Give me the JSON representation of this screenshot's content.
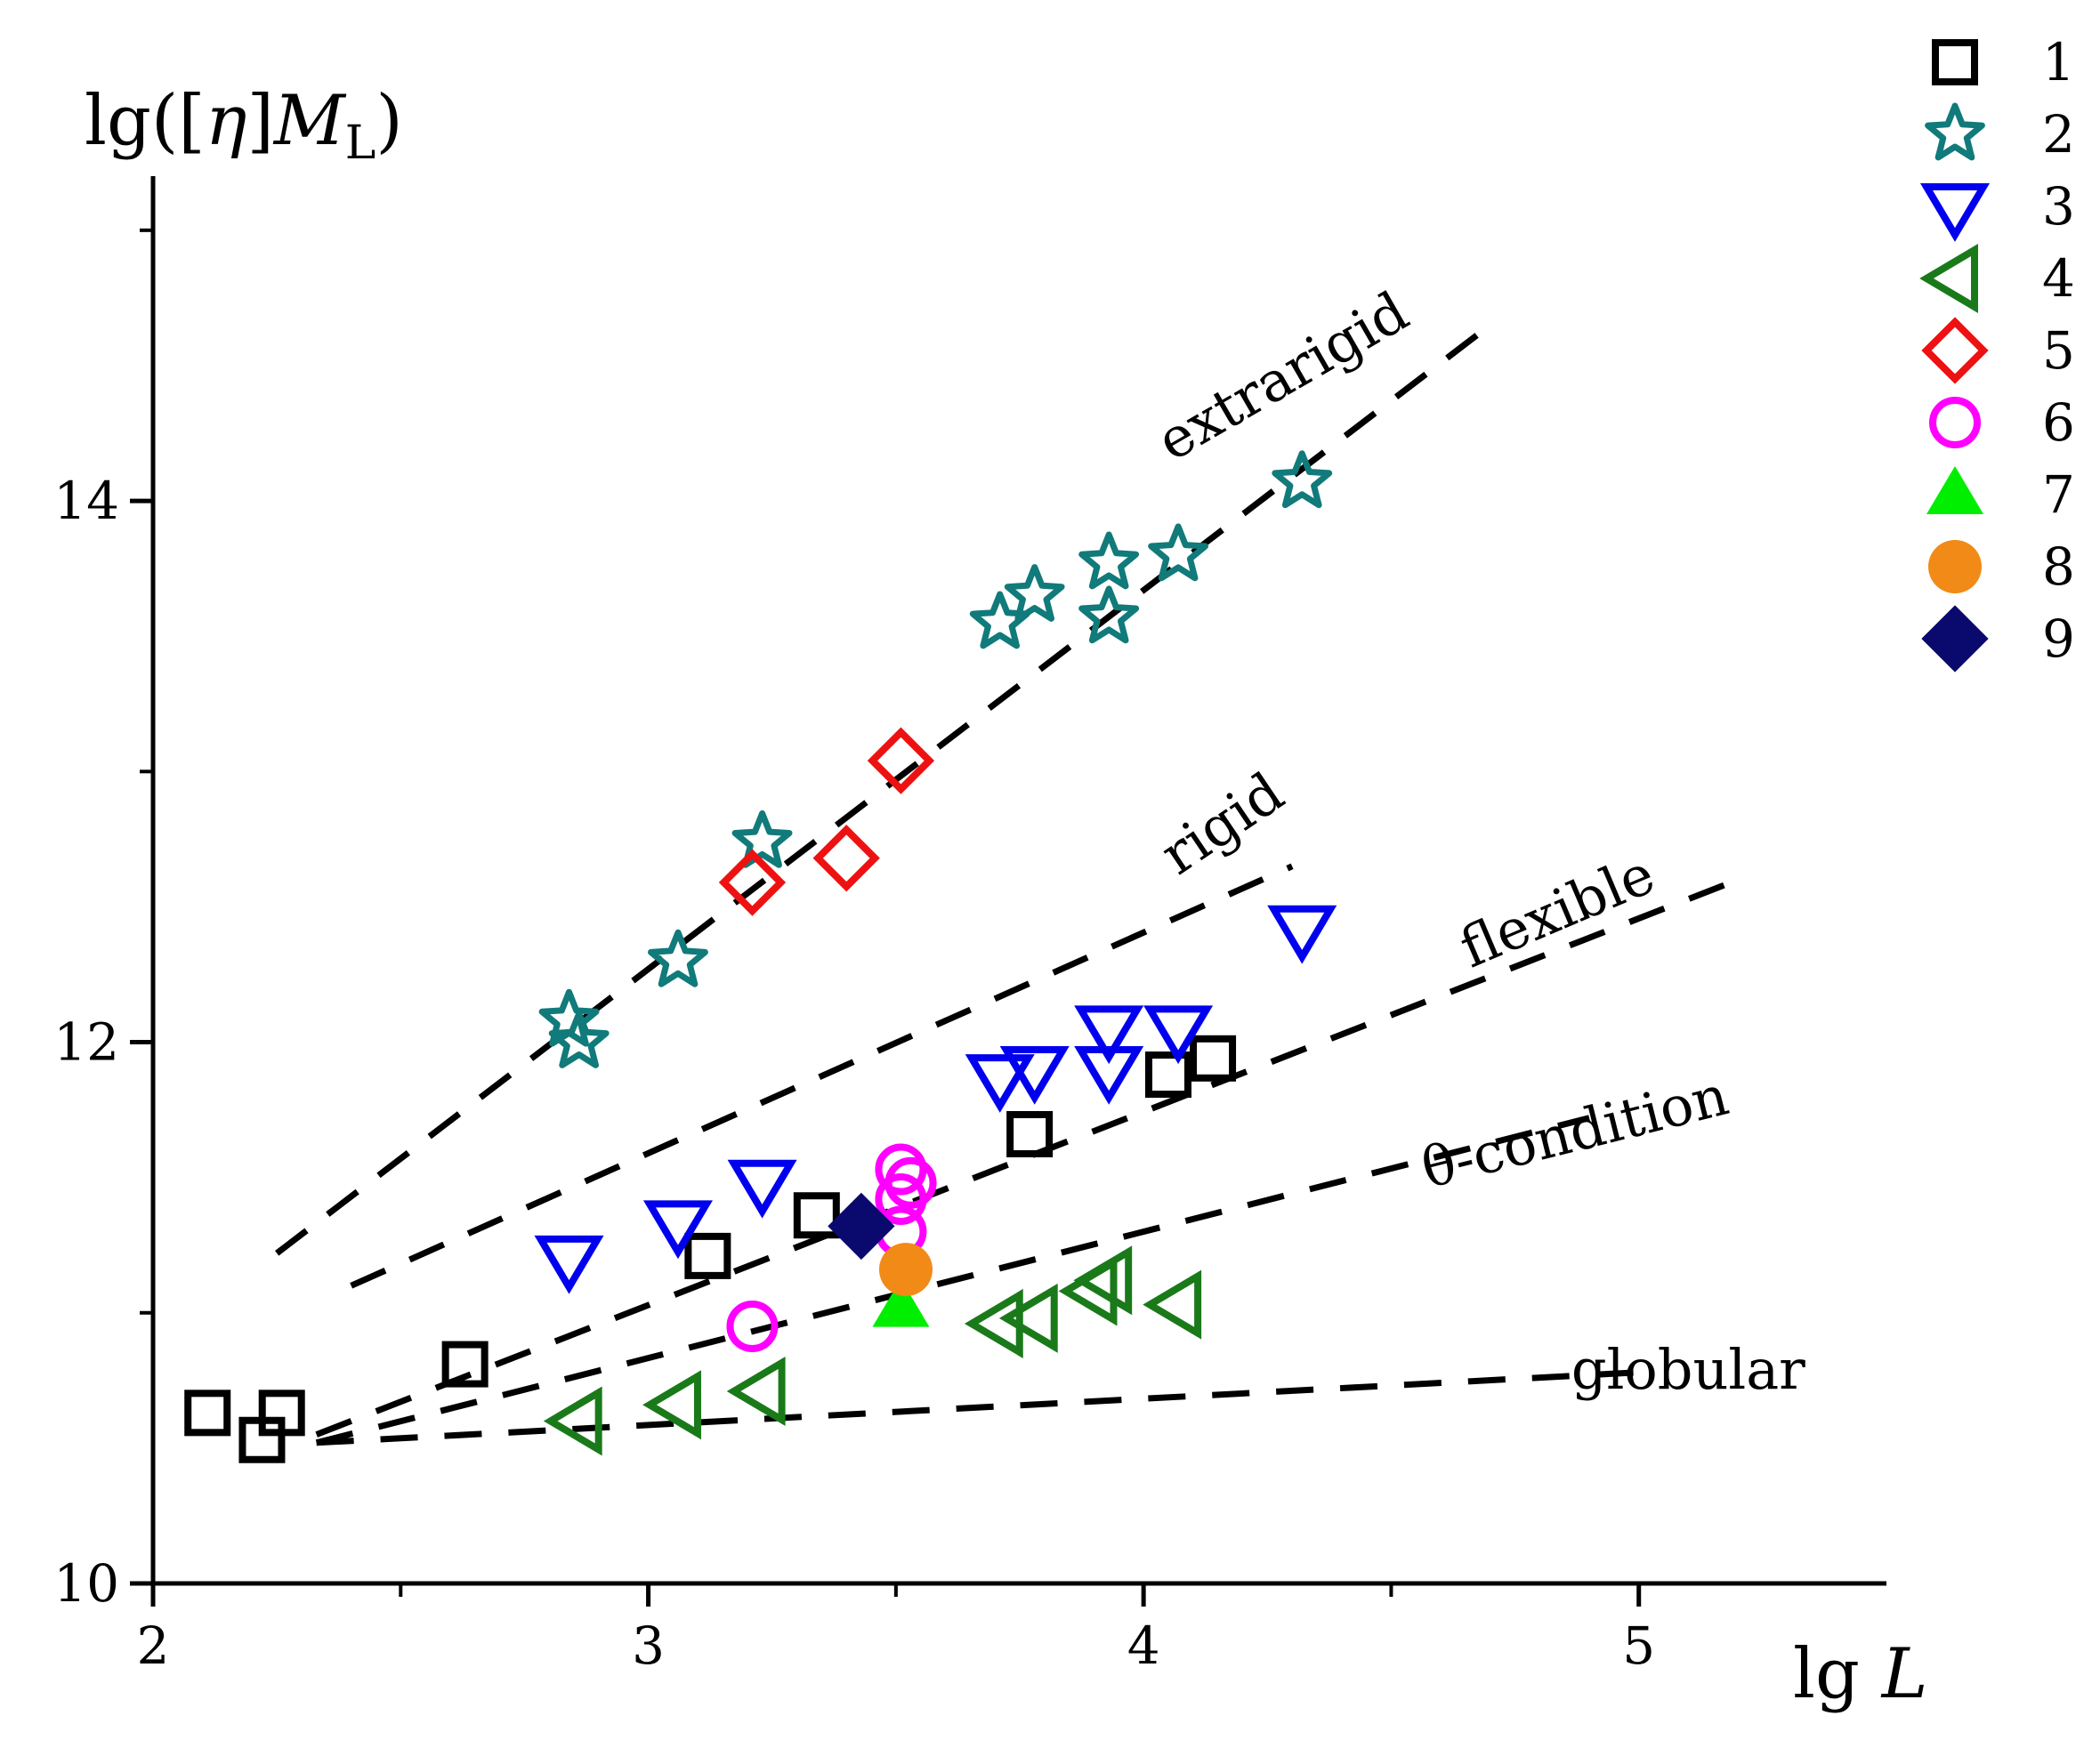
{
  "chart_data": {
    "type": "scatter",
    "title": "",
    "ylabel": "lg([η]M_L)",
    "ylabel_parts": {
      "prefix": "lg([",
      "eta": "η",
      "mid": "]",
      "M": "M",
      "sub": "L",
      "suffix": ")"
    },
    "xlabel": "lg L",
    "xlabel_parts": {
      "lg": "lg",
      "L": "L"
    },
    "xlim": [
      2,
      5.5
    ],
    "ylim": [
      10,
      15.2
    ],
    "x_ticks": [
      2,
      3,
      4,
      5
    ],
    "x_ticklabels": [
      "2",
      "3",
      "4",
      "5"
    ],
    "x_minor_ticks": [
      2.5,
      3.5,
      4.5
    ],
    "y_ticks": [
      10,
      12,
      14
    ],
    "y_ticklabels": [
      "10",
      "12",
      "14"
    ],
    "y_minor_ticks": [
      11,
      13,
      15
    ],
    "grid": false,
    "legend_position": "right",
    "curves": [
      {
        "name": "extrarigid",
        "label": "extrarigid",
        "x": [
          2.25,
          4.7
        ],
        "y": [
          11.22,
          14.65
        ],
        "label_at": [
          4.3,
          14.4
        ],
        "angle": -30
      },
      {
        "name": "rigid",
        "label": "rigid",
        "x": [
          2.4,
          4.3
        ],
        "y": [
          11.1,
          12.65
        ],
        "label_at": [
          4.18,
          12.75
        ],
        "angle": -34
      },
      {
        "name": "flexible",
        "label": "flexible",
        "x": [
          2.33,
          5.2
        ],
        "y": [
          10.55,
          12.6
        ],
        "label_at": [
          4.85,
          12.42
        ],
        "angle": -23
      },
      {
        "name": "theta-condition",
        "label": "θ-condition",
        "x": [
          2.33,
          4.9
        ],
        "y": [
          10.52,
          11.72
        ],
        "label_at": [
          4.88,
          11.6
        ],
        "angle": -14
      },
      {
        "name": "globular",
        "label": "globular",
        "x": [
          2.33,
          5.0
        ],
        "y": [
          10.52,
          10.78
        ],
        "label_at": [
          5.1,
          10.72
        ],
        "angle": 0
      }
    ],
    "series": [
      {
        "name": "1",
        "label": "1",
        "marker": "square",
        "color": "#000000",
        "filled": false,
        "x": [
          2.11,
          2.22,
          2.26,
          2.63,
          3.12,
          3.34,
          3.77,
          4.05,
          4.14
        ],
        "y": [
          10.63,
          10.53,
          10.63,
          10.81,
          11.21,
          11.36,
          11.66,
          11.88,
          11.94
        ]
      },
      {
        "name": "2",
        "label": "2",
        "marker": "star",
        "color": "#117a7a",
        "filled": false,
        "x": [
          2.84,
          2.86,
          3.06,
          3.23,
          3.71,
          3.78,
          3.93,
          3.93,
          4.07,
          4.32
        ],
        "y": [
          12.08,
          12.0,
          12.3,
          12.74,
          13.55,
          13.65,
          13.57,
          13.77,
          13.8,
          14.07
        ]
      },
      {
        "name": "3",
        "label": "3",
        "marker": "triangle-down",
        "color": "#0000ee",
        "filled": false,
        "x": [
          2.84,
          3.06,
          3.23,
          3.71,
          3.78,
          3.93,
          3.93,
          4.07,
          4.32
        ],
        "y": [
          11.2,
          11.33,
          11.48,
          11.87,
          11.9,
          11.9,
          12.05,
          12.05,
          12.42
        ]
      },
      {
        "name": "4",
        "label": "4",
        "marker": "triangle-left",
        "color": "#1a7a1a",
        "filled": false,
        "x": [
          2.86,
          3.06,
          3.23,
          3.71,
          3.78,
          3.9,
          3.93,
          4.07
        ],
        "y": [
          10.6,
          10.66,
          10.71,
          10.96,
          10.98,
          11.08,
          11.12,
          11.03
        ]
      },
      {
        "name": "5",
        "label": "5",
        "marker": "diamond",
        "color": "#ee1111",
        "filled": false,
        "x": [
          3.21,
          3.4,
          3.51
        ],
        "y": [
          12.59,
          12.68,
          13.04
        ]
      },
      {
        "name": "6",
        "label": "6",
        "marker": "circle",
        "color": "#ff00ff",
        "filled": false,
        "x": [
          3.21,
          3.51,
          3.53,
          3.51,
          3.51
        ],
        "y": [
          10.95,
          11.53,
          11.48,
          11.42,
          11.3
        ]
      },
      {
        "name": "7",
        "label": "7",
        "marker": "triangle-up",
        "color": "#00ee00",
        "filled": true,
        "x": [
          3.51
        ],
        "y": [
          11.02
        ]
      },
      {
        "name": "8",
        "label": "8",
        "marker": "circle",
        "color": "#f28a17",
        "filled": true,
        "x": [
          3.52
        ],
        "y": [
          11.16
        ]
      },
      {
        "name": "9",
        "label": "9",
        "marker": "diamond",
        "color": "#0a0a6e",
        "filled": true,
        "x": [
          3.43
        ],
        "y": [
          11.32
        ]
      }
    ]
  }
}
